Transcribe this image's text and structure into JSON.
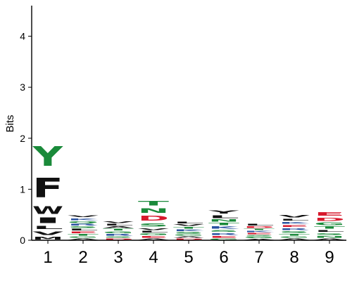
{
  "chart_data": {
    "type": "sequence-logo",
    "ylabel": "Bits",
    "xlabel": "",
    "ylim": [
      0,
      4.6
    ],
    "yticks": [
      "0",
      "1",
      "2",
      "3",
      "4"
    ],
    "categories": [
      "1",
      "2",
      "3",
      "4",
      "5",
      "6",
      "7",
      "8",
      "9"
    ],
    "colors": {
      "hydrophobic": "#111111",
      "polar": "#1a8a3a",
      "acidic": "#d7192d",
      "basic": "#2a52a0",
      "neutral": "#7a7a7a"
    },
    "positions": [
      {
        "position": "1",
        "letters": [
          {
            "letter": "M",
            "bits": 0.08,
            "color": "#111111"
          },
          {
            "letter": "V",
            "bits": 0.12,
            "color": "#111111"
          },
          {
            "letter": "L",
            "bits": 0.1,
            "color": "#111111"
          },
          {
            "letter": "I",
            "bits": 0.17,
            "color": "#111111"
          },
          {
            "letter": "W",
            "bits": 0.24,
            "color": "#111111"
          },
          {
            "letter": "F",
            "bits": 0.62,
            "color": "#111111"
          },
          {
            "letter": "Y",
            "bits": 0.62,
            "color": "#1a8a3a"
          }
        ]
      },
      {
        "position": "2",
        "letters": [
          {
            "letter": "A",
            "bits": 0.04,
            "color": "#111111"
          },
          {
            "letter": "G",
            "bits": 0.04,
            "color": "#1a8a3a"
          },
          {
            "letter": "T",
            "bits": 0.05,
            "color": "#1a8a3a"
          },
          {
            "letter": "E",
            "bits": 0.05,
            "color": "#d7192d"
          },
          {
            "letter": "L",
            "bits": 0.05,
            "color": "#111111"
          },
          {
            "letter": "S",
            "bits": 0.05,
            "color": "#1a8a3a"
          },
          {
            "letter": "R",
            "bits": 0.05,
            "color": "#2a52a0"
          },
          {
            "letter": "Q",
            "bits": 0.05,
            "color": "#1a8a3a"
          },
          {
            "letter": "K",
            "bits": 0.06,
            "color": "#2a52a0"
          },
          {
            "letter": "V",
            "bits": 0.06,
            "color": "#111111"
          }
        ]
      },
      {
        "position": "3",
        "letters": [
          {
            "letter": "D",
            "bits": 0.04,
            "color": "#d7192d"
          },
          {
            "letter": "S",
            "bits": 0.04,
            "color": "#1a8a3a"
          },
          {
            "letter": "R",
            "bits": 0.05,
            "color": "#2a52a0"
          },
          {
            "letter": "G",
            "bits": 0.05,
            "color": "#1a8a3a"
          },
          {
            "letter": "T",
            "bits": 0.05,
            "color": "#1a8a3a"
          },
          {
            "letter": "A",
            "bits": 0.05,
            "color": "#111111"
          },
          {
            "letter": "L",
            "bits": 0.05,
            "color": "#111111"
          },
          {
            "letter": "V",
            "bits": 0.05,
            "color": "#111111"
          }
        ]
      },
      {
        "position": "4",
        "letters": [
          {
            "letter": "A",
            "bits": 0.04,
            "color": "#111111"
          },
          {
            "letter": "E",
            "bits": 0.05,
            "color": "#d7192d"
          },
          {
            "letter": "G",
            "bits": 0.05,
            "color": "#1a8a3a"
          },
          {
            "letter": "L",
            "bits": 0.05,
            "color": "#111111"
          },
          {
            "letter": "V",
            "bits": 0.06,
            "color": "#111111"
          },
          {
            "letter": "S",
            "bits": 0.1,
            "color": "#1a8a3a"
          },
          {
            "letter": "D",
            "bits": 0.16,
            "color": "#d7192d"
          },
          {
            "letter": "N",
            "bits": 0.14,
            "color": "#1a8a3a"
          },
          {
            "letter": "T",
            "bits": 0.14,
            "color": "#1a8a3a"
          }
        ]
      },
      {
        "position": "5",
        "letters": [
          {
            "letter": "D",
            "bits": 0.04,
            "color": "#d7192d"
          },
          {
            "letter": "A",
            "bits": 0.04,
            "color": "#111111"
          },
          {
            "letter": "G",
            "bits": 0.04,
            "color": "#1a8a3a"
          },
          {
            "letter": "S",
            "bits": 0.05,
            "color": "#1a8a3a"
          },
          {
            "letter": "K",
            "bits": 0.05,
            "color": "#2a52a0"
          },
          {
            "letter": "T",
            "bits": 0.05,
            "color": "#1a8a3a"
          },
          {
            "letter": "V",
            "bits": 0.05,
            "color": "#111111"
          },
          {
            "letter": "L",
            "bits": 0.05,
            "color": "#111111"
          }
        ]
      },
      {
        "position": "6",
        "letters": [
          {
            "letter": "G",
            "bits": 0.04,
            "color": "#1a8a3a"
          },
          {
            "letter": "E",
            "bits": 0.05,
            "color": "#d7192d"
          },
          {
            "letter": "R",
            "bits": 0.06,
            "color": "#2a52a0"
          },
          {
            "letter": "S",
            "bits": 0.06,
            "color": "#1a8a3a"
          },
          {
            "letter": "K",
            "bits": 0.07,
            "color": "#2a52a0"
          },
          {
            "letter": "T",
            "bits": 0.07,
            "color": "#1a8a3a"
          },
          {
            "letter": "N",
            "bits": 0.07,
            "color": "#1a8a3a"
          },
          {
            "letter": "L",
            "bits": 0.08,
            "color": "#111111"
          },
          {
            "letter": "Y",
            "bits": 0.1,
            "color": "#111111"
          }
        ]
      },
      {
        "position": "7",
        "letters": [
          {
            "letter": "A",
            "bits": 0.03,
            "color": "#111111"
          },
          {
            "letter": "G",
            "bits": 0.04,
            "color": "#1a8a3a"
          },
          {
            "letter": "S",
            "bits": 0.04,
            "color": "#1a8a3a"
          },
          {
            "letter": "E",
            "bits": 0.04,
            "color": "#d7192d"
          },
          {
            "letter": "K",
            "bits": 0.04,
            "color": "#2a52a0"
          },
          {
            "letter": "T",
            "bits": 0.04,
            "color": "#1a8a3a"
          },
          {
            "letter": "D",
            "bits": 0.05,
            "color": "#d7192d"
          },
          {
            "letter": "L",
            "bits": 0.05,
            "color": "#111111"
          }
        ]
      },
      {
        "position": "8",
        "letters": [
          {
            "letter": "A",
            "bits": 0.04,
            "color": "#111111"
          },
          {
            "letter": "G",
            "bits": 0.04,
            "color": "#1a8a3a"
          },
          {
            "letter": "T",
            "bits": 0.05,
            "color": "#1a8a3a"
          },
          {
            "letter": "S",
            "bits": 0.06,
            "color": "#1a8a3a"
          },
          {
            "letter": "R",
            "bits": 0.06,
            "color": "#2a52a0"
          },
          {
            "letter": "E",
            "bits": 0.06,
            "color": "#d7192d"
          },
          {
            "letter": "K",
            "bits": 0.06,
            "color": "#2a52a0"
          },
          {
            "letter": "L",
            "bits": 0.06,
            "color": "#111111"
          },
          {
            "letter": "V",
            "bits": 0.07,
            "color": "#111111"
          }
        ]
      },
      {
        "position": "9",
        "letters": [
          {
            "letter": "A",
            "bits": 0.04,
            "color": "#111111"
          },
          {
            "letter": "N",
            "bits": 0.05,
            "color": "#1a8a3a"
          },
          {
            "letter": "S",
            "bits": 0.06,
            "color": "#1a8a3a"
          },
          {
            "letter": "L",
            "bits": 0.06,
            "color": "#111111"
          },
          {
            "letter": "T",
            "bits": 0.07,
            "color": "#1a8a3a"
          },
          {
            "letter": "G",
            "bits": 0.08,
            "color": "#1a8a3a"
          },
          {
            "letter": "D",
            "bits": 0.1,
            "color": "#d7192d"
          },
          {
            "letter": "E",
            "bits": 0.11,
            "color": "#d7192d"
          }
        ]
      }
    ]
  }
}
